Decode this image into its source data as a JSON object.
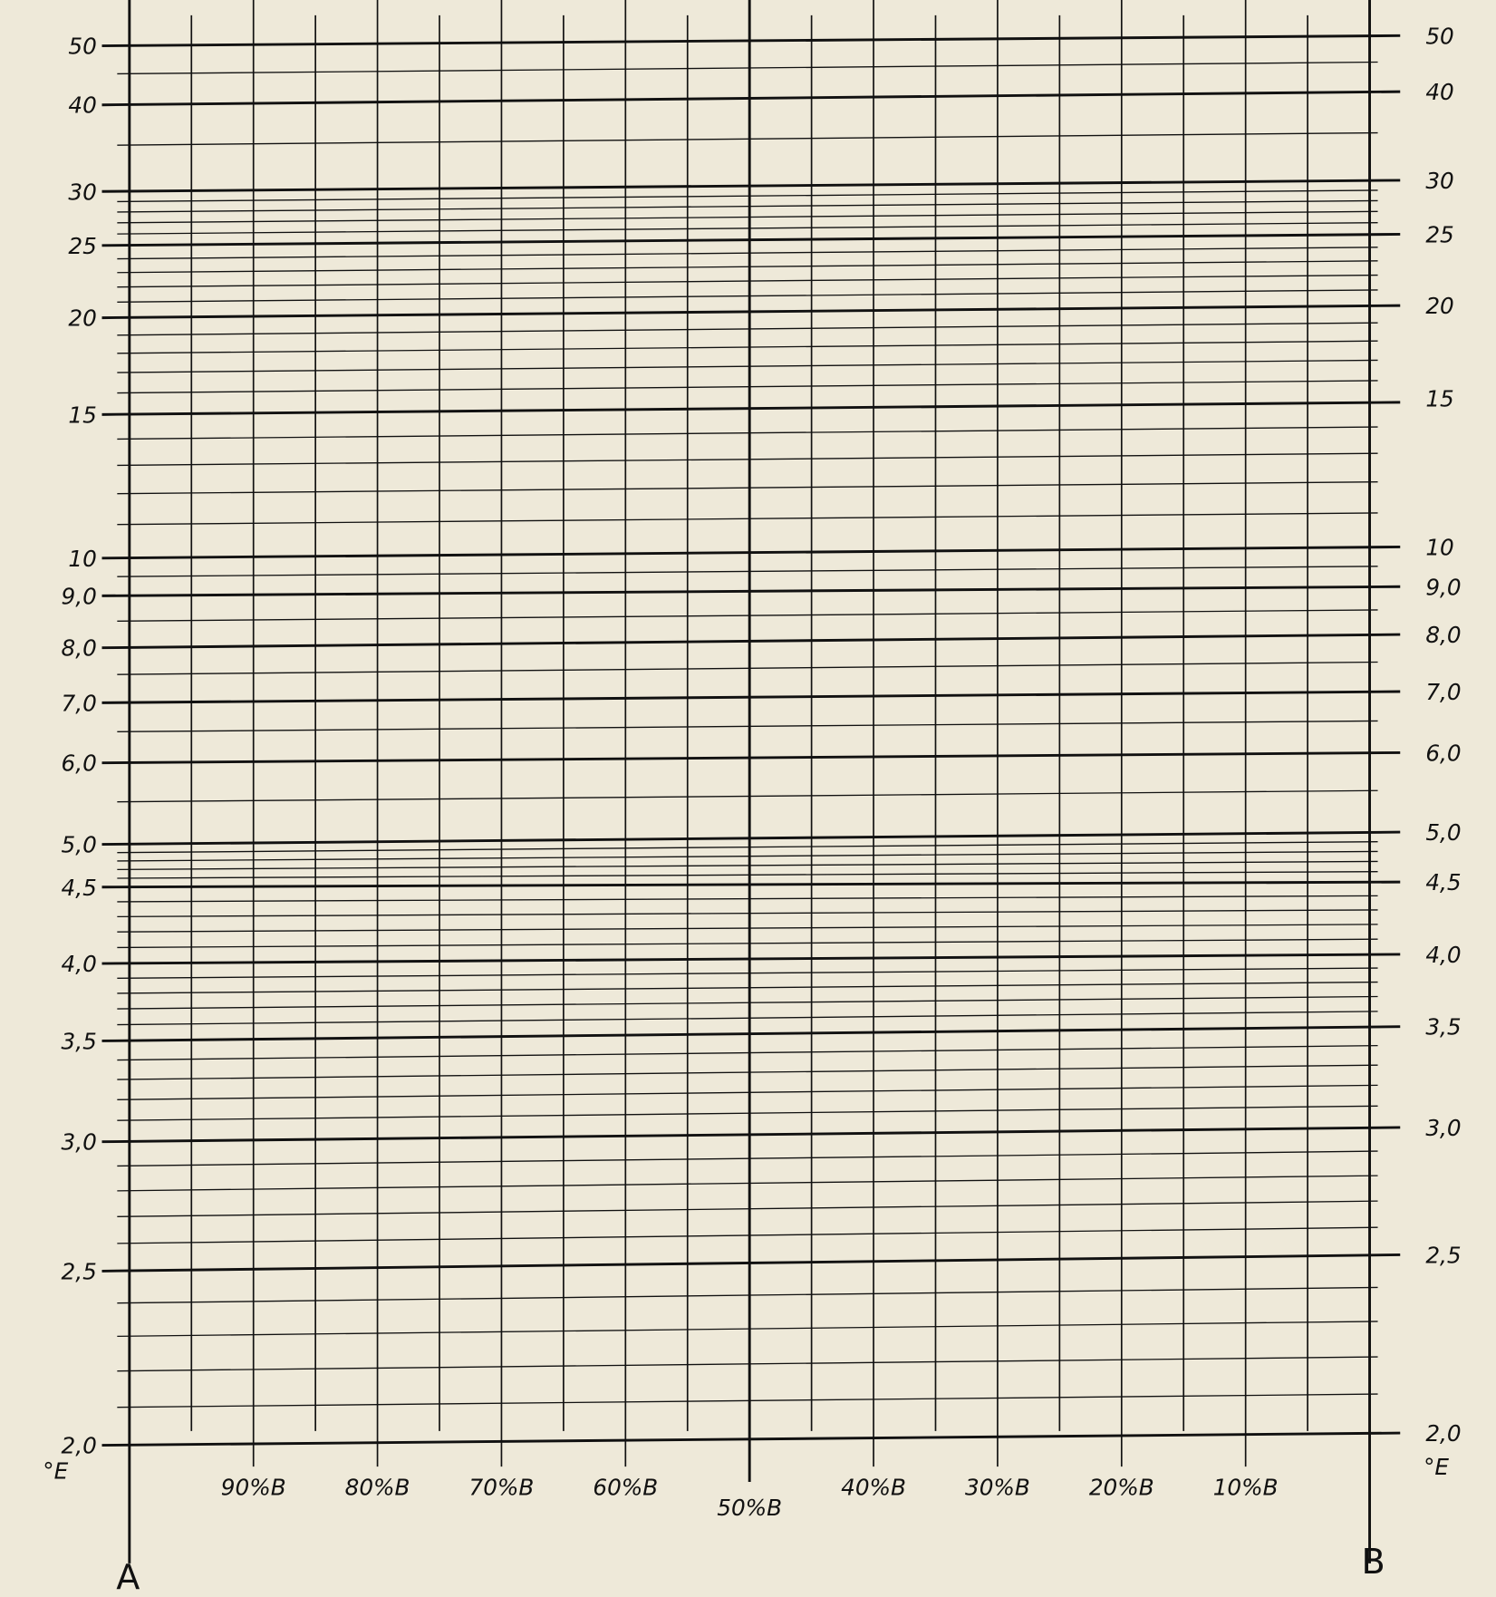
{
  "chart_data": {
    "type": "nomogram",
    "y_unit_label_left": "°E",
    "y_unit_label_right": "°E",
    "y_major_ticks": [
      50,
      40,
      30,
      25,
      20,
      15,
      10,
      9.0,
      8.0,
      7.0,
      6.0,
      5.0,
      4.5,
      4.0,
      3.5,
      3.0,
      2.5,
      2.0
    ],
    "y_major_tick_labels": [
      "50",
      "40",
      "30",
      "25",
      "20",
      "15",
      "10",
      "9,0",
      "8,0",
      "7,0",
      "6,0",
      "5,0",
      "4,5",
      "4,0",
      "3,5",
      "3,0",
      "2,5",
      "2,0"
    ],
    "y_range": [
      2.0,
      50
    ],
    "x_ticks_percent_B": [
      90,
      80,
      70,
      60,
      50,
      40,
      30,
      20,
      10
    ],
    "x_tick_labels": [
      "90%B",
      "80%B",
      "70%B",
      "60%B",
      "50%B",
      "40%B",
      "30%B",
      "20%B",
      "10%B"
    ],
    "x_range_percent_B": [
      100,
      0
    ],
    "axis_left_label": "A",
    "axis_right_label": "B",
    "grid": true,
    "colors": {
      "paper": "#eee9d9",
      "ink": "#111111"
    }
  }
}
